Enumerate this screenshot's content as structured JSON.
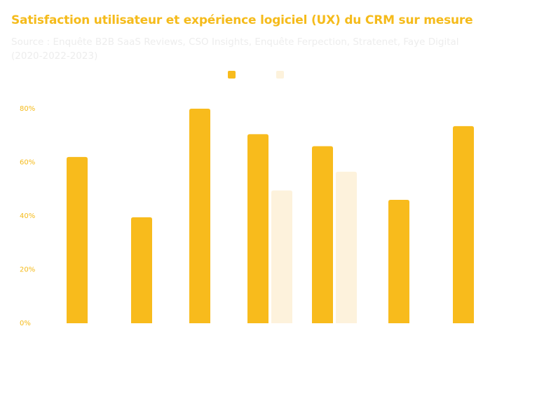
{
  "title": "Satisfaction utilisateur et expérience logiciel (UX) du CRM sur mesure",
  "subtitle": "Source : Enquête B2B SaaS Reviews, CSO Insights, Enquête Ferpection, Stratenet, Faye Digital (2020-2022-2023)",
  "colors": {
    "series1": "#f8bb1c",
    "series2": "#fdf2dc",
    "title": "#f5bb1b",
    "subtitle": "#ededed",
    "ticks": "#f5bb1b"
  },
  "chart_data": {
    "type": "bar",
    "categories": [
      "",
      "",
      "",
      "",
      "",
      "",
      ""
    ],
    "series": [
      {
        "values": [
          62,
          39.5,
          80,
          70.5,
          66,
          46,
          73.5
        ]
      },
      {
        "values": [
          null,
          null,
          null,
          49.5,
          56.5,
          null,
          null
        ]
      }
    ],
    "ylim": [
      0,
      80
    ],
    "yticks": [
      0,
      20,
      40,
      60,
      80
    ],
    "ytick_labels": [
      "0%",
      "20%",
      "40%",
      "60%",
      "80%"
    ],
    "grid": false,
    "legend_position": "top-center"
  }
}
